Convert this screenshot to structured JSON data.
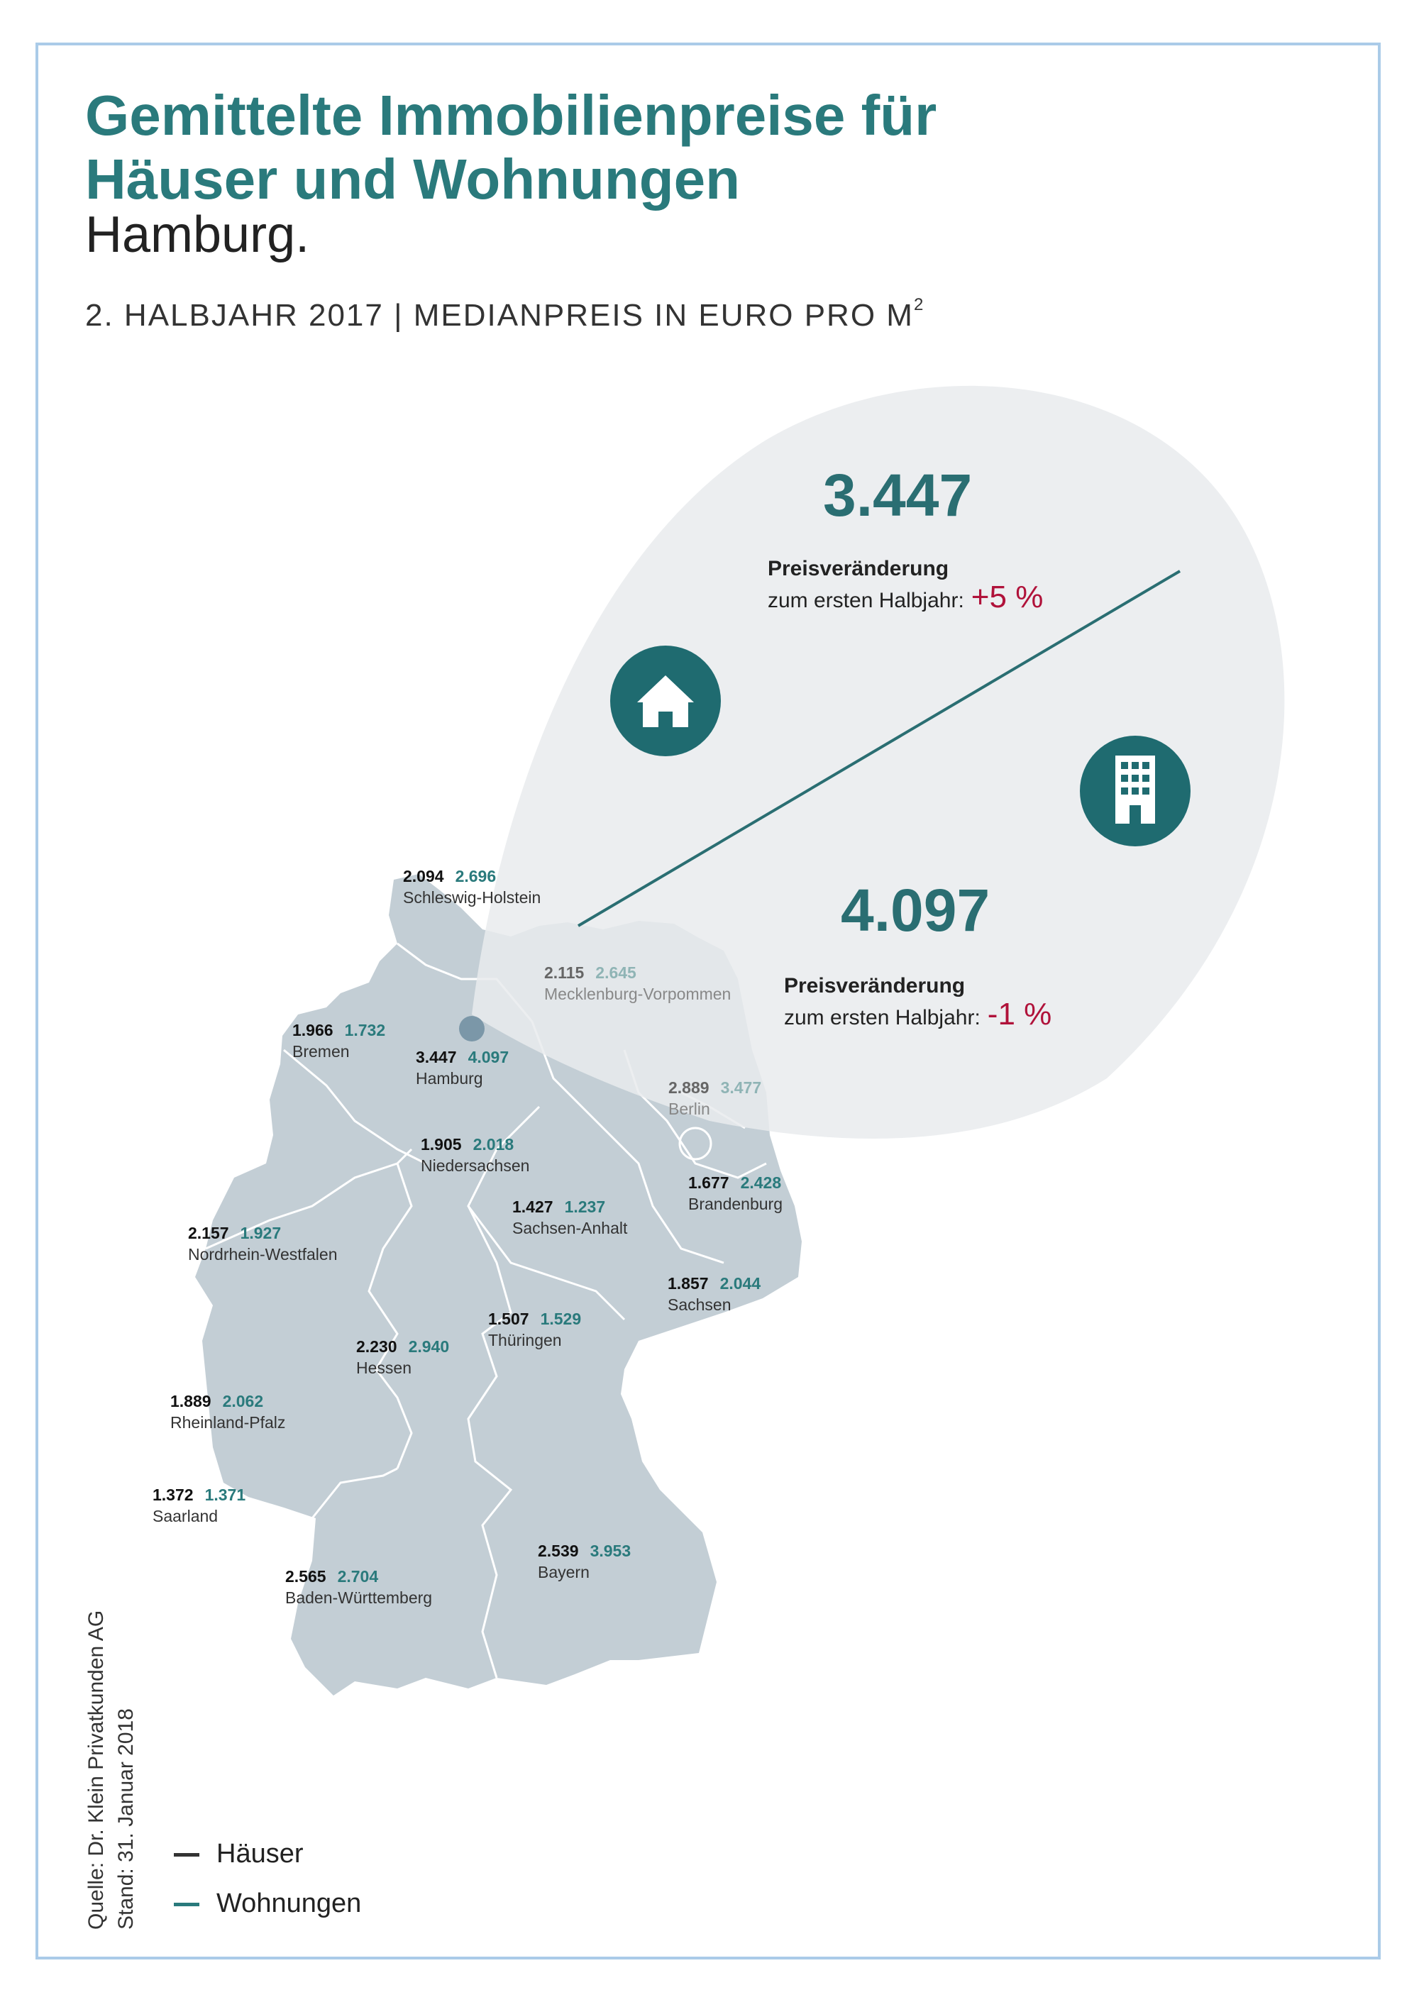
{
  "title": {
    "line1": "Gemittelte Immobilienpreise für",
    "line2": "Häuser und Wohnungen"
  },
  "subtitle": "Hamburg.",
  "meta": {
    "text": "2. HALBJAHR 2017 | MEDIANPREIS IN EURO PRO M",
    "sup": "2"
  },
  "callout": {
    "houses": {
      "value": "3.447",
      "change_label": "Preisveränderung",
      "change_sub": "zum ersten Halbjahr:",
      "change_value": "+5 %"
    },
    "apartments": {
      "value": "4.097",
      "change_label": "Preisveränderung",
      "change_sub": "zum ersten Halbjahr:",
      "change_value": "-1 %"
    },
    "house_icon": "house-icon",
    "apartment_icon": "apartment-building-icon"
  },
  "states": [
    {
      "name": "Schleswig-Holstein",
      "houses": "2.094",
      "apartments": "2.696"
    },
    {
      "name": "Mecklenburg-Vorpommen",
      "houses": "2.115",
      "apartments": "2.645"
    },
    {
      "name": "Bremen",
      "houses": "1.966",
      "apartments": "1.732"
    },
    {
      "name": "Hamburg",
      "houses": "3.447",
      "apartments": "4.097"
    },
    {
      "name": "Berlin",
      "houses": "2.889",
      "apartments": "3.477"
    },
    {
      "name": "Niedersachsen",
      "houses": "1.905",
      "apartments": "2.018"
    },
    {
      "name": "Brandenburg",
      "houses": "1.677",
      "apartments": "2.428"
    },
    {
      "name": "Sachsen-Anhalt",
      "houses": "1.427",
      "apartments": "1.237"
    },
    {
      "name": "Nordrhein-Westfalen",
      "houses": "2.157",
      "apartments": "1.927"
    },
    {
      "name": "Sachsen",
      "houses": "1.857",
      "apartments": "2.044"
    },
    {
      "name": "Thüringen",
      "houses": "1.507",
      "apartments": "1.529"
    },
    {
      "name": "Hessen",
      "houses": "2.230",
      "apartments": "2.940"
    },
    {
      "name": "Rheinland-Pfalz",
      "houses": "1.889",
      "apartments": "2.062"
    },
    {
      "name": "Saarland",
      "houses": "1.372",
      "apartments": "1.371"
    },
    {
      "name": "Bayern",
      "houses": "2.539",
      "apartments": "3.953"
    },
    {
      "name": "Baden-Württemberg",
      "houses": "2.565",
      "apartments": "2.704"
    }
  ],
  "source": {
    "line1": "Quelle: Dr. Klein Privatkunden AG",
    "line2": "Stand: 31. Januar 2018"
  },
  "legend": [
    {
      "label": "Häuser",
      "color": "#333333"
    },
    {
      "label": "Wohnungen",
      "color": "#2a7a7c"
    }
  ],
  "colors": {
    "accent": "#2a7a7c",
    "negative": "#b0123a",
    "map": "#c3ced5",
    "bubble": "#f1f2f3"
  }
}
